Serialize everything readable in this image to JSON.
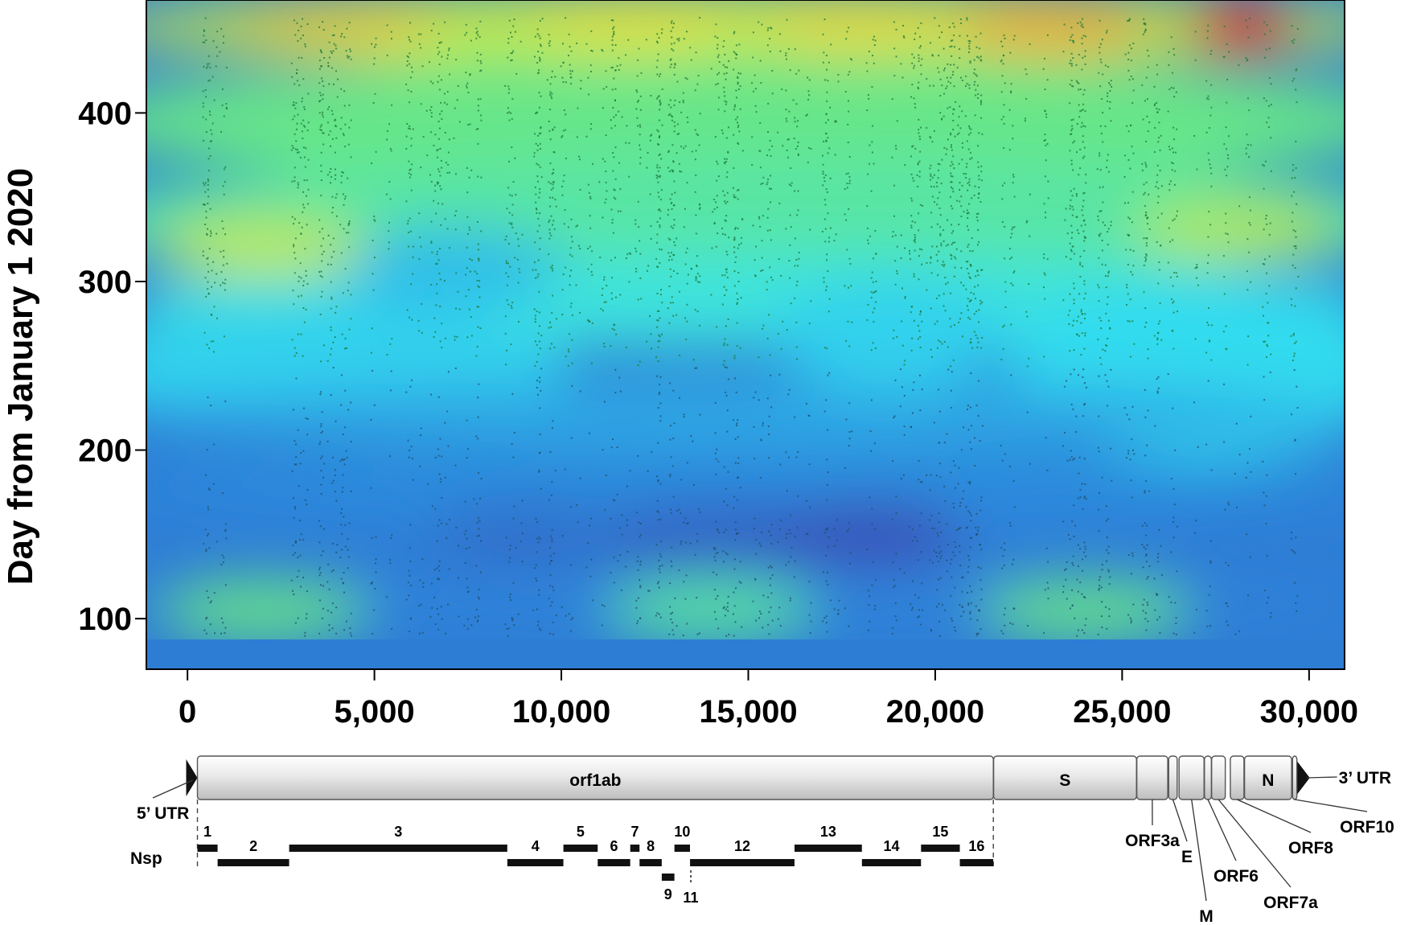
{
  "chart_data": {
    "type": "heatmap",
    "title": "",
    "xlabel": "",
    "ylabel": "Day from January 1 2020",
    "xlim": [
      -1100,
      30950
    ],
    "ylim": [
      70,
      467
    ],
    "xticks": [
      0,
      5000,
      10000,
      15000,
      20000,
      25000,
      30000
    ],
    "xtick_labels": [
      "0",
      "5,000",
      "10,000",
      "15,000",
      "20,000",
      "25,000",
      "30,000"
    ],
    "yticks": [
      100,
      200,
      300,
      400
    ],
    "ytick_labels": [
      "100",
      "200",
      "300",
      "400"
    ],
    "grid": false,
    "legend": "none",
    "colormap": [
      "#3a50b8",
      "#2a8ee0",
      "#33e2f0",
      "#6ee67a",
      "#e0e83a",
      "#f2a030",
      "#e63020"
    ],
    "density_peaks": [
      {
        "x": 28200,
        "y": 450,
        "level": 1.0
      },
      {
        "x": 23000,
        "y": 450,
        "level": 0.8
      },
      {
        "x": 18000,
        "y": 450,
        "level": 0.7
      },
      {
        "x": 12000,
        "y": 450,
        "level": 0.68
      },
      {
        "x": 4000,
        "y": 450,
        "level": 0.72
      },
      {
        "x": 2000,
        "y": 320,
        "level": 0.62
      },
      {
        "x": 28000,
        "y": 330,
        "level": 0.6
      },
      {
        "x": 14000,
        "y": 105,
        "level": 0.45
      },
      {
        "x": 2000,
        "y": 105,
        "level": 0.48
      },
      {
        "x": 24000,
        "y": 105,
        "level": 0.48
      },
      {
        "x": 18200,
        "y": 150,
        "level": 0.0
      },
      {
        "x": 9000,
        "y": 150,
        "level": 0.08
      }
    ]
  },
  "genome_map": {
    "genes": [
      {
        "label": "orf1ab",
        "start": 266,
        "end": 21555
      },
      {
        "label": "S",
        "start": 21563,
        "end": 25384
      },
      {
        "label": "ORF3a",
        "start": 25393,
        "end": 26220
      },
      {
        "label": "E",
        "start": 26245,
        "end": 26472
      },
      {
        "label": "M",
        "start": 26523,
        "end": 27191
      },
      {
        "label": "ORF6",
        "start": 27202,
        "end": 27387
      },
      {
        "label": "ORF7a",
        "start": 27394,
        "end": 27759
      },
      {
        "label": "ORF8",
        "start": 27894,
        "end": 28259
      },
      {
        "label": "N",
        "start": 28274,
        "end": 29533
      },
      {
        "label": "ORF10",
        "start": 29558,
        "end": 29674
      }
    ],
    "utr5_label": "5’ UTR",
    "utr3_label": "3’ UTR",
    "nsp_label": "Nsp",
    "nsps": [
      {
        "label": "1",
        "start": 266,
        "end": 805,
        "row": 0
      },
      {
        "label": "2",
        "start": 806,
        "end": 2719,
        "row": 1
      },
      {
        "label": "3",
        "start": 2720,
        "end": 8554,
        "row": 0
      },
      {
        "label": "4",
        "start": 8555,
        "end": 10054,
        "row": 1
      },
      {
        "label": "5",
        "start": 10055,
        "end": 10972,
        "row": 0
      },
      {
        "label": "6",
        "start": 10973,
        "end": 11842,
        "row": 1
      },
      {
        "label": "7",
        "start": 11843,
        "end": 12091,
        "row": 0
      },
      {
        "label": "8",
        "start": 12092,
        "end": 12685,
        "row": 1
      },
      {
        "label": "9",
        "start": 12686,
        "end": 13024,
        "row": 2
      },
      {
        "label": "10",
        "start": 13025,
        "end": 13441,
        "row": 0
      },
      {
        "label": "11",
        "start": 13442,
        "end": 13480,
        "row": 3
      },
      {
        "label": "12",
        "start": 13442,
        "end": 16236,
        "row": 1
      },
      {
        "label": "13",
        "start": 16237,
        "end": 18039,
        "row": 0
      },
      {
        "label": "14",
        "start": 18040,
        "end": 19620,
        "row": 1
      },
      {
        "label": "15",
        "start": 19621,
        "end": 20658,
        "row": 0
      },
      {
        "label": "16",
        "start": 20659,
        "end": 21552,
        "row": 1
      }
    ]
  }
}
